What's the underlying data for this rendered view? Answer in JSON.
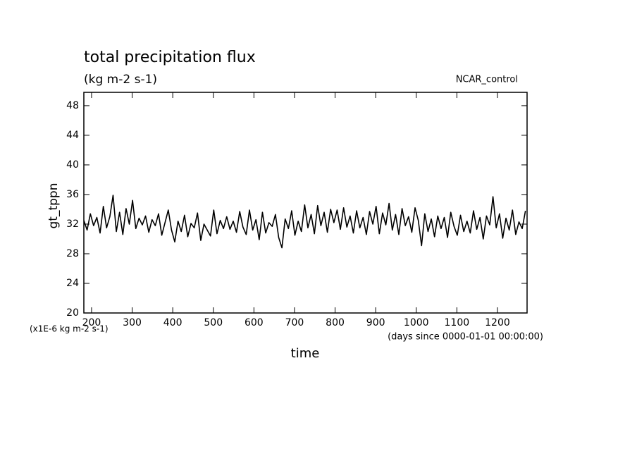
{
  "chart_data": {
    "type": "line",
    "title": "total precipitation flux",
    "subtitle": "(kg m-2 s-1)",
    "annotation": "NCAR_control",
    "ylabel": "gt_tppn",
    "yunit": "(x1E-6 kg m-2 s-1)",
    "xlabel": "time",
    "xunit": "(days since 0000-01-01 00:00:00)",
    "xlim": [
      181,
      1273
    ],
    "ylim": [
      20,
      49.8
    ],
    "xticks": [
      200,
      300,
      400,
      500,
      600,
      700,
      800,
      900,
      1000,
      1100,
      1200
    ],
    "yticks": [
      20,
      24,
      28,
      32,
      36,
      40,
      44,
      48
    ],
    "x": [
      181,
      189,
      197,
      205,
      213,
      221,
      229,
      237,
      245,
      253,
      261,
      269,
      277,
      285,
      293,
      301,
      309,
      317,
      325,
      333,
      341,
      349,
      357,
      365,
      373,
      381,
      389,
      397,
      405,
      413,
      421,
      429,
      437,
      445,
      453,
      461,
      469,
      477,
      485,
      493,
      501,
      509,
      517,
      525,
      533,
      541,
      549,
      557,
      565,
      573,
      581,
      589,
      597,
      605,
      613,
      621,
      629,
      637,
      645,
      653,
      661,
      669,
      677,
      685,
      693,
      701,
      709,
      717,
      725,
      733,
      741,
      749,
      757,
      765,
      773,
      781,
      789,
      797,
      805,
      813,
      821,
      829,
      837,
      845,
      853,
      861,
      869,
      877,
      885,
      893,
      901,
      909,
      917,
      925,
      933,
      941,
      949,
      957,
      965,
      973,
      981,
      989,
      997,
      1005,
      1013,
      1021,
      1029,
      1037,
      1045,
      1053,
      1061,
      1069,
      1077,
      1085,
      1093,
      1101,
      1109,
      1117,
      1125,
      1133,
      1141,
      1149,
      1157,
      1165,
      1173,
      1181,
      1189,
      1197,
      1205,
      1213,
      1221,
      1229,
      1237,
      1245,
      1253,
      1261,
      1269
    ],
    "series": [
      {
        "color": "#000000",
        "values": [
          32.5,
          31.2,
          33.4,
          31.8,
          32.9,
          30.8,
          34.4,
          31.5,
          33.0,
          35.9,
          31.0,
          33.6,
          30.6,
          34.1,
          32.0,
          35.2,
          31.4,
          32.8,
          31.9,
          33.1,
          30.9,
          32.6,
          31.8,
          33.4,
          30.5,
          32.2,
          33.9,
          31.2,
          29.6,
          32.4,
          31.0,
          33.2,
          30.3,
          32.1,
          31.5,
          33.5,
          29.8,
          32.0,
          31.2,
          30.4,
          33.9,
          30.7,
          32.5,
          31.4,
          33.0,
          31.3,
          32.4,
          30.9,
          33.7,
          31.6,
          30.6,
          33.9,
          31.2,
          32.6,
          29.9,
          33.6,
          30.8,
          32.2,
          31.7,
          33.3,
          30.2,
          28.8,
          32.7,
          31.4,
          33.8,
          30.5,
          32.4,
          31.0,
          34.6,
          31.5,
          33.3,
          30.7,
          34.5,
          31.8,
          33.6,
          30.9,
          34.0,
          32.2,
          33.9,
          31.3,
          34.2,
          31.6,
          33.1,
          30.8,
          33.8,
          31.5,
          32.9,
          30.6,
          33.7,
          32.0,
          34.4,
          30.7,
          33.5,
          31.9,
          34.8,
          31.2,
          33.3,
          30.6,
          34.1,
          31.8,
          33.0,
          30.9,
          34.2,
          32.5,
          29.1,
          33.4,
          31.0,
          32.7,
          30.3,
          33.1,
          31.4,
          32.9,
          30.2,
          33.6,
          31.7,
          30.5,
          33.2,
          31.0,
          32.4,
          30.8,
          33.8,
          31.3,
          32.9,
          30.0,
          33.1,
          31.9,
          35.7,
          31.5,
          33.4,
          30.1,
          32.8,
          31.2,
          33.9,
          30.6,
          32.3,
          31.4,
          33.8
        ]
      }
    ]
  }
}
